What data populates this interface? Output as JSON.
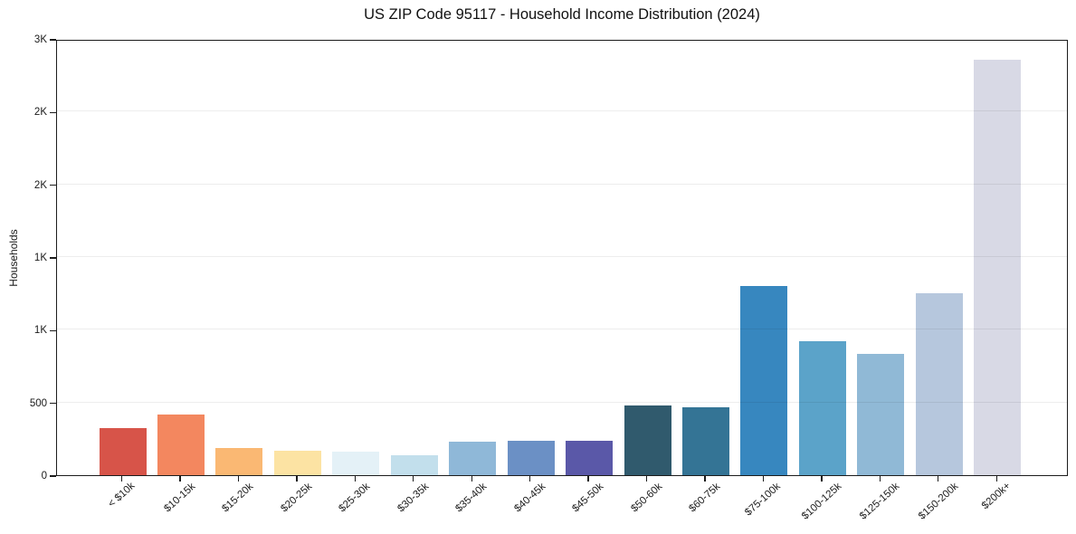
{
  "title": "US ZIP Code 95117 - Household Income Distribution (2024)",
  "y_axis": {
    "label": "Households",
    "tick_values": [
      0,
      500,
      1000,
      1500,
      2000,
      2500,
      3000
    ],
    "tick_labels": [
      "0",
      "500",
      "1K",
      "1K",
      "2K",
      "2K",
      "3K"
    ]
  },
  "chart_data": {
    "type": "bar",
    "title": "US ZIP Code 95117 - Household Income Distribution (2024)",
    "xlabel": "",
    "ylabel": "Households",
    "ylim": [
      0,
      3000
    ],
    "grid": true,
    "legend": "none",
    "categories": [
      "< $10k",
      "$10-15k",
      "$15-20k",
      "$20-25k",
      "$25-30k",
      "$30-35k",
      "$35-40k",
      "$40-45k",
      "$45-50k",
      "$50-60k",
      "$60-75k",
      "$75-100k",
      "$100-125k",
      "$125-150k",
      "$150-200k",
      "$200k+"
    ],
    "values": [
      325,
      420,
      185,
      170,
      160,
      140,
      230,
      235,
      235,
      480,
      470,
      1300,
      920,
      835,
      1250,
      2860
    ],
    "bar_colors": [
      "#d75449",
      "#f3875f",
      "#fab873",
      "#fce3a3",
      "#e4f1f7",
      "#c2dfec",
      "#8fb8d8",
      "#6b90c5",
      "#5a58a8",
      "#305a6d",
      "#347495",
      "#3787bf",
      "#5ba3c9",
      "#90b9d6",
      "#b6c7dd",
      "#d8d9e5"
    ]
  }
}
